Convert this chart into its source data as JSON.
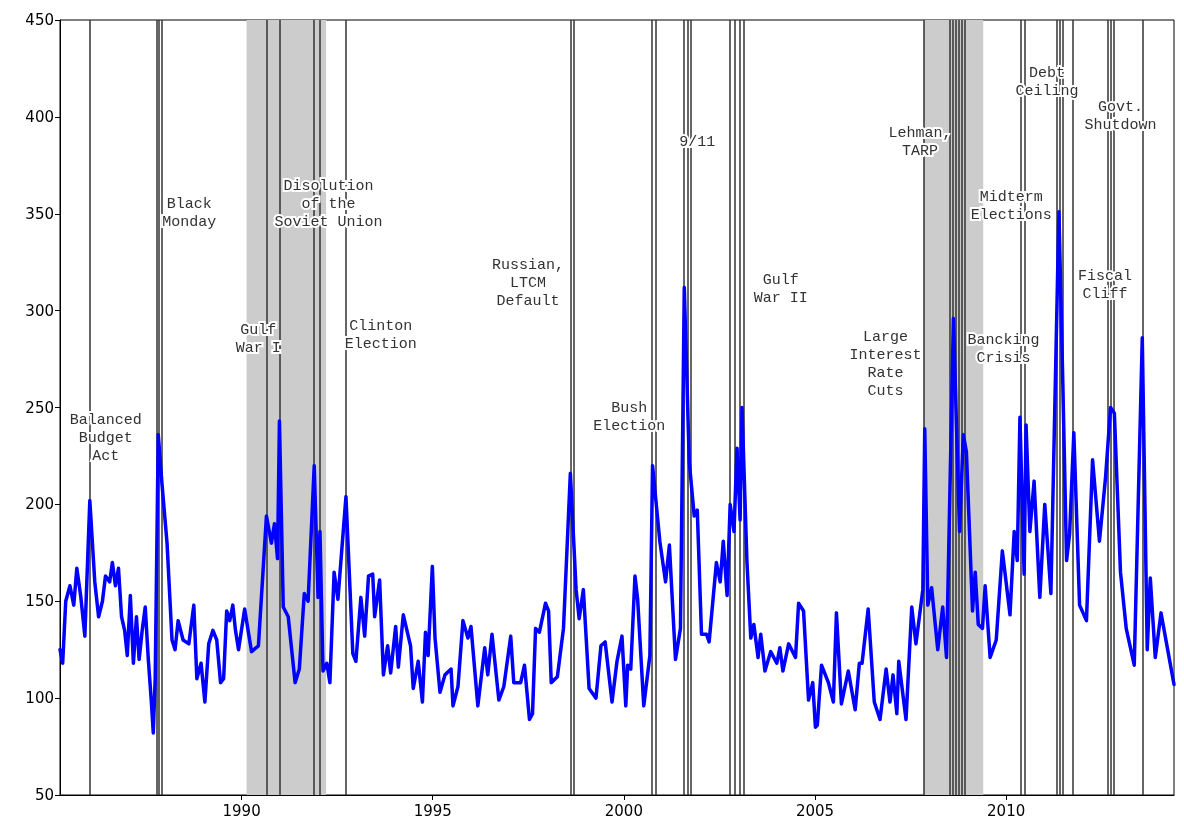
{
  "chart_data": {
    "type": "line",
    "x": [
      1985.25,
      1985.32,
      1985.4,
      1985.51,
      1985.61,
      1985.69,
      1985.79,
      1985.9,
      1986.03,
      1986.16,
      1986.26,
      1986.36,
      1986.44,
      1986.55,
      1986.62,
      1986.7,
      1986.78,
      1986.86,
      1986.94,
      1987.01,
      1987.09,
      1987.17,
      1987.25,
      1987.32,
      1987.4,
      1987.48,
      1987.56,
      1987.64,
      1987.69,
      1987.74,
      1987.82,
      1987.92,
      1988.05,
      1988.18,
      1988.26,
      1988.34,
      1988.47,
      1988.62,
      1988.75,
      1988.83,
      1988.94,
      1989.04,
      1989.14,
      1989.25,
      1989.35,
      1989.45,
      1989.53,
      1989.61,
      1989.69,
      1989.77,
      1989.84,
      1989.92,
      1990.08,
      1990.26,
      1990.44,
      1990.65,
      1990.78,
      1990.86,
      1990.94,
      1990.99,
      1991.09,
      1991.22,
      1991.4,
      1991.51,
      1991.64,
      1991.74,
      1991.9,
      1992.0,
      1992.05,
      1992.13,
      1992.23,
      1992.31,
      1992.42,
      1992.52,
      1992.73,
      1992.91,
      1992.99,
      1993.12,
      1993.22,
      1993.32,
      1993.43,
      1993.48,
      1993.61,
      1993.71,
      1993.82,
      1993.9,
      1994.03,
      1994.1,
      1994.23,
      1994.42,
      1994.49,
      1994.62,
      1994.73,
      1994.81,
      1994.88,
      1994.99,
      1995.06,
      1995.19,
      1995.32,
      1995.48,
      1995.53,
      1995.66,
      1995.79,
      1995.92,
      1996.0,
      1996.18,
      1996.36,
      1996.44,
      1996.55,
      1996.73,
      1996.86,
      1997.04,
      1997.12,
      1997.3,
      1997.4,
      1997.53,
      1997.61,
      1997.69,
      1997.79,
      1997.95,
      1998.03,
      1998.1,
      1998.26,
      1998.42,
      1998.6,
      1998.75,
      1998.83,
      1998.94,
      1999.09,
      1999.27,
      1999.4,
      1999.51,
      1999.69,
      1999.82,
      1999.95,
      2000.05,
      2000.1,
      2000.18,
      2000.29,
      2000.36,
      2000.52,
      2000.68,
      2000.75,
      2000.94,
      2001.09,
      2001.19,
      2001.35,
      2001.48,
      2001.58,
      2001.71,
      2001.84,
      2001.92,
      2002.03,
      2002.16,
      2002.23,
      2002.42,
      2002.52,
      2002.6,
      2002.7,
      2002.78,
      2002.88,
      2002.96,
      2003.04,
      2003.09,
      2003.22,
      2003.32,
      2003.4,
      2003.51,
      2003.58,
      2003.69,
      2003.84,
      2004.0,
      2004.08,
      2004.16,
      2004.31,
      2004.49,
      2004.57,
      2004.7,
      2004.83,
      2004.94,
      2005.01,
      2005.06,
      2005.17,
      2005.35,
      2005.48,
      2005.56,
      2005.69,
      2005.87,
      2006.05,
      2006.16,
      2006.23,
      2006.39,
      2006.55,
      2006.7,
      2006.86,
      2006.96,
      2007.04,
      2007.14,
      2007.19,
      2007.38,
      2007.53,
      2007.64,
      2007.82,
      2007.87,
      2007.95,
      2008.05,
      2008.21,
      2008.34,
      2008.44,
      2008.62,
      2008.78,
      2008.88,
      2008.96,
      2009.12,
      2009.19,
      2009.27,
      2009.38,
      2009.45,
      2009.58,
      2009.74,
      2009.9,
      2010.1,
      2010.21,
      2010.29,
      2010.36,
      2010.47,
      2010.52,
      2010.62,
      2010.73,
      2010.88,
      2011.01,
      2011.17,
      2011.38,
      2011.48,
      2011.58,
      2011.66,
      2011.77,
      2011.92,
      2012.1,
      2012.26,
      2012.44,
      2012.6,
      2012.73,
      2012.83,
      2012.99,
      2013.14,
      2013.35,
      2013.56,
      2013.69,
      2013.77,
      2013.9,
      2014.05,
      2014.39
    ],
    "values": [
      125,
      118,
      150,
      158,
      148,
      167,
      153,
      132,
      202,
      160,
      142,
      150,
      163,
      160,
      170,
      158,
      167,
      142,
      135,
      122,
      153,
      118,
      142,
      120,
      135,
      147,
      120,
      98,
      82,
      110,
      236,
      210,
      180,
      130,
      125,
      140,
      130,
      128,
      148,
      110,
      118,
      98,
      128,
      135,
      130,
      108,
      110,
      145,
      140,
      148,
      135,
      125,
      146,
      124,
      127,
      194,
      180,
      190,
      172,
      243,
      147,
      142,
      108,
      115,
      154,
      150,
      220,
      152,
      186,
      114,
      118,
      108,
      165,
      151,
      204,
      123,
      119,
      152,
      132,
      163,
      164,
      142,
      161,
      112,
      127,
      113,
      137,
      116,
      143,
      127,
      105,
      119,
      98,
      134,
      122,
      168,
      131,
      103,
      112,
      115,
      96,
      106,
      140,
      131,
      137,
      96,
      126,
      112,
      133,
      99,
      106,
      132,
      108,
      108,
      117,
      89,
      92,
      136,
      134,
      149,
      145,
      108,
      111,
      136,
      216,
      156,
      141,
      156,
      105,
      100,
      127,
      129,
      98,
      119,
      132,
      96,
      117,
      115,
      163,
      151,
      96,
      122,
      220,
      181,
      160,
      179,
      120,
      136,
      312,
      222,
      194,
      197,
      133,
      133,
      129,
      170,
      160,
      181,
      153,
      200,
      186,
      229,
      192,
      250,
      170,
      131,
      138,
      121,
      133,
      114,
      124,
      118,
      126,
      114,
      128,
      121,
      149,
      145,
      99,
      108,
      85,
      86,
      117,
      108,
      98,
      144,
      97,
      114,
      94,
      118,
      118,
      146,
      98,
      89,
      115,
      98,
      112,
      92,
      119,
      89,
      147,
      128,
      156,
      239,
      148,
      157,
      125,
      147,
      121,
      296,
      186,
      236,
      227,
      145,
      165,
      138,
      136,
      158,
      121,
      130,
      176,
      143,
      186,
      171,
      245,
      164,
      241,
      186,
      212,
      152,
      200,
      154,
      351,
      264,
      171,
      185,
      237,
      148,
      140,
      223,
      181,
      214,
      250,
      247,
      165,
      136,
      117,
      286,
      125,
      162,
      121,
      144,
      107
    ],
    "color": "#0000ff",
    "xlim": [
      1985.25,
      2014.39
    ],
    "xticks": [
      1990,
      1995,
      2000,
      2005,
      2010
    ],
    "ylim": [
      50,
      450
    ],
    "yticks": [
      50,
      100,
      150,
      200,
      250,
      300,
      350,
      400,
      450
    ],
    "grid": false,
    "marker": "none",
    "line_style": "solid",
    "ref_lines": [
      {
        "axis": "x",
        "value": 1986.03,
        "color": "#333333"
      },
      {
        "axis": "x",
        "value": 1987.77,
        "color": "#333333"
      },
      {
        "axis": "x",
        "value": 1987.84,
        "color": "#333333"
      },
      {
        "axis": "x",
        "value": 1987.92,
        "color": "#333333"
      },
      {
        "axis": "x",
        "value": 1990.65,
        "color": "#333333"
      },
      {
        "axis": "x",
        "value": 1990.99,
        "color": "#333333"
      },
      {
        "axis": "x",
        "value": 1991.9,
        "color": "#333333"
      },
      {
        "axis": "x",
        "value": 1992.05,
        "color": "#333333"
      },
      {
        "axis": "x",
        "value": 1992.73,
        "color": "#333333"
      },
      {
        "axis": "x",
        "value": 1998.6,
        "color": "#333333"
      },
      {
        "axis": "x",
        "value": 1998.68,
        "color": "#333333"
      },
      {
        "axis": "x",
        "value": 2000.73,
        "color": "#333333"
      },
      {
        "axis": "x",
        "value": 2000.83,
        "color": "#333333"
      },
      {
        "axis": "x",
        "value": 2001.56,
        "color": "#333333"
      },
      {
        "axis": "x",
        "value": 2001.66,
        "color": "#333333"
      },
      {
        "axis": "x",
        "value": 2001.74,
        "color": "#333333"
      },
      {
        "axis": "x",
        "value": 2002.78,
        "color": "#333333"
      },
      {
        "axis": "x",
        "value": 2002.91,
        "color": "#333333"
      },
      {
        "axis": "x",
        "value": 2003.04,
        "color": "#333333"
      },
      {
        "axis": "x",
        "value": 2003.14,
        "color": "#333333"
      },
      {
        "axis": "x",
        "value": 2007.84,
        "color": "#333333"
      },
      {
        "axis": "x",
        "value": 2008.52,
        "color": "#333333"
      },
      {
        "axis": "x",
        "value": 2008.6,
        "color": "#333333"
      },
      {
        "axis": "x",
        "value": 2008.68,
        "color": "#333333"
      },
      {
        "axis": "x",
        "value": 2008.75,
        "color": "#333333"
      },
      {
        "axis": "x",
        "value": 2008.83,
        "color": "#333333"
      },
      {
        "axis": "x",
        "value": 2008.91,
        "color": "#333333"
      },
      {
        "axis": "x",
        "value": 2010.39,
        "color": "#333333"
      },
      {
        "axis": "x",
        "value": 2010.49,
        "color": "#333333"
      },
      {
        "axis": "x",
        "value": 2011.32,
        "color": "#333333"
      },
      {
        "axis": "x",
        "value": 2011.4,
        "color": "#333333"
      },
      {
        "axis": "x",
        "value": 2011.48,
        "color": "#333333"
      },
      {
        "axis": "x",
        "value": 2011.74,
        "color": "#333333"
      },
      {
        "axis": "x",
        "value": 2012.65,
        "color": "#333333"
      },
      {
        "axis": "x",
        "value": 2012.73,
        "color": "#333333"
      },
      {
        "axis": "x",
        "value": 2012.81,
        "color": "#333333"
      },
      {
        "axis": "x",
        "value": 2013.56,
        "color": "#333333"
      }
    ],
    "bands": [
      {
        "axis": "x",
        "from": 1990.13,
        "to": 1992.21,
        "color": "#cccccc"
      },
      {
        "axis": "x",
        "from": 2007.84,
        "to": 2009.4,
        "color": "#cccccc"
      }
    ],
    "annotations": [
      "Balanced\nBudget\nAct",
      "Black\nMonday",
      "Disolution\nof the\nSoviet Union",
      "Gulf\nWar I",
      "Clinton\nElection",
      "Russian,\nLTCM\nDefault",
      "Bush\nElection",
      "9/11",
      "Gulf\nWar II",
      "Large\nInterest\nRate\nCuts",
      "Lehman,\nTARP",
      "Bancking\nCrisis",
      "Midterm\nElections",
      "Debt\nCeiling",
      "Fiscal\nCliff",
      "Govt.\nShutdown"
    ]
  }
}
